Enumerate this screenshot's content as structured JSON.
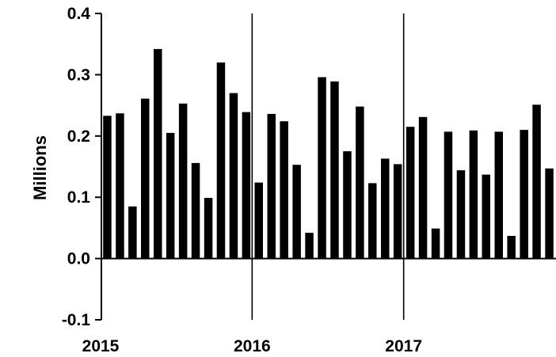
{
  "chart_data": {
    "type": "bar",
    "title": "",
    "xlabel": "",
    "ylabel": "Millions",
    "ylim": [
      -0.1,
      0.4
    ],
    "yticks": [
      "-0.1",
      "0.0",
      "0.1",
      "0.2",
      "0.3",
      "0.4"
    ],
    "year_labels": [
      "2015",
      "2016",
      "2017"
    ],
    "year_dividers": [
      "2016",
      "2017"
    ],
    "grid": false,
    "bar_color": "#000000",
    "categories": [
      "2015-01",
      "2015-02",
      "2015-03",
      "2015-04",
      "2015-05",
      "2015-06",
      "2015-07",
      "2015-08",
      "2015-09",
      "2015-10",
      "2015-11",
      "2015-12",
      "2016-01",
      "2016-02",
      "2016-03",
      "2016-04",
      "2016-05",
      "2016-06",
      "2016-07",
      "2016-08",
      "2016-09",
      "2016-10",
      "2016-11",
      "2016-12",
      "2017-01",
      "2017-02",
      "2017-03",
      "2017-04",
      "2017-05",
      "2017-06",
      "2017-07",
      "2017-08",
      "2017-09",
      "2017-10",
      "2017-11",
      "2017-12"
    ],
    "values": [
      0.233,
      0.237,
      0.085,
      0.261,
      0.342,
      0.205,
      0.253,
      0.156,
      0.099,
      0.32,
      0.27,
      0.239,
      0.124,
      0.236,
      0.224,
      0.153,
      0.042,
      0.296,
      0.289,
      0.175,
      0.248,
      0.123,
      0.163,
      0.154,
      0.215,
      0.231,
      0.049,
      0.207,
      0.144,
      0.209,
      0.137,
      0.207,
      0.037,
      0.21,
      0.251,
      0.147
    ]
  }
}
